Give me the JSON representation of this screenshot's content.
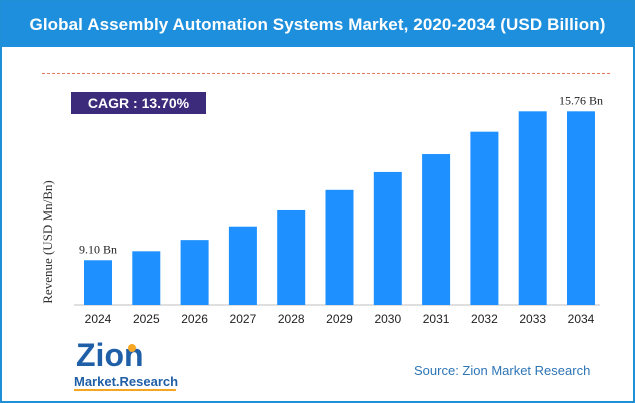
{
  "header": {
    "title": "Global Assembly Automation Systems Market, 2020-2034 (USD Billion)"
  },
  "cagr": {
    "label": "CAGR : 13.70%"
  },
  "chart_data": {
    "type": "bar",
    "title": "Global Assembly Automation Systems Market, 2020-2034 (USD Billion)",
    "xlabel": "",
    "ylabel": "Revenue (USD Mn/Bn)",
    "categories": [
      "2024",
      "2025",
      "2026",
      "2027",
      "2028",
      "2029",
      "2030",
      "2031",
      "2032",
      "2033",
      "2034"
    ],
    "values": [
      9.1,
      9.5,
      10.0,
      10.6,
      11.35,
      12.25,
      13.05,
      13.85,
      14.85,
      15.76,
      15.76
    ],
    "ylim": [
      7.1,
      16.4
    ],
    "grid": false,
    "annotations": [
      {
        "category": "2024",
        "text": "9.10 Bn"
      },
      {
        "category": "2034",
        "text": "15.76 Bn"
      }
    ],
    "bar_color": "#1e90ff"
  },
  "logo": {
    "line1": "Zion",
    "line2": "Market.Research"
  },
  "source": {
    "text": "Source: Zion Market Research"
  }
}
